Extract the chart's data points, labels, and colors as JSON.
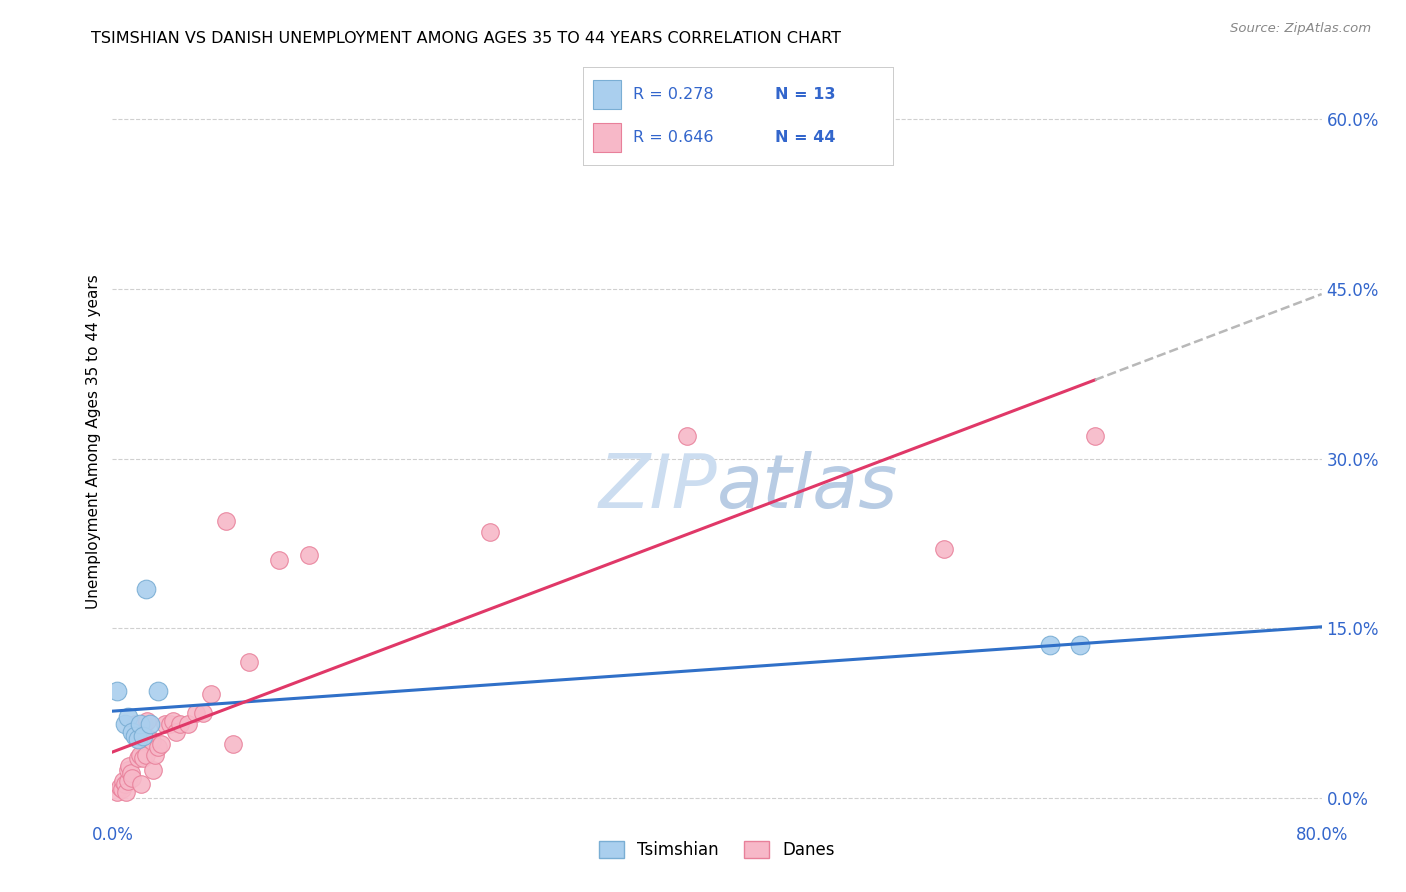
{
  "title": "TSIMSHIAN VS DANISH UNEMPLOYMENT AMONG AGES 35 TO 44 YEARS CORRELATION CHART",
  "source": "Source: ZipAtlas.com",
  "ylabel": "Unemployment Among Ages 35 to 44 years",
  "xlim": [
    0.0,
    0.8
  ],
  "ylim": [
    -0.02,
    0.65
  ],
  "xticks": [
    0.0,
    0.1,
    0.2,
    0.3,
    0.4,
    0.5,
    0.6,
    0.7,
    0.8
  ],
  "xticklabels": [
    "0.0%",
    "",
    "",
    "",
    "",
    "",
    "",
    "",
    "80.0%"
  ],
  "yticks_right": [
    0.0,
    0.15,
    0.3,
    0.45,
    0.6
  ],
  "yticklabels_right": [
    "0.0%",
    "15.0%",
    "30.0%",
    "45.0%",
    "60.0%"
  ],
  "tsimshian_color": "#aacfee",
  "tsimshian_edge": "#7aaed4",
  "danes_color": "#f7b8c8",
  "danes_edge": "#e8809a",
  "trend_tsimshian_color": "#3070c8",
  "trend_danes_color": "#e03868",
  "dashed_line_color": "#b8b8b8",
  "watermark_color": "#ccddf0",
  "legend_R1": "R = 0.278",
  "legend_N1": "N = 13",
  "legend_R2": "R = 0.646",
  "legend_N2": "N = 44",
  "legend_text_color": "#3366cc",
  "tsimshian_x": [
    0.003,
    0.008,
    0.01,
    0.013,
    0.015,
    0.017,
    0.018,
    0.02,
    0.022,
    0.025,
    0.03,
    0.62,
    0.64
  ],
  "tsimshian_y": [
    0.095,
    0.065,
    0.072,
    0.058,
    0.055,
    0.052,
    0.065,
    0.055,
    0.185,
    0.065,
    0.095,
    0.135,
    0.135
  ],
  "danes_x": [
    0.003,
    0.005,
    0.006,
    0.007,
    0.008,
    0.009,
    0.01,
    0.01,
    0.011,
    0.012,
    0.013,
    0.015,
    0.016,
    0.017,
    0.018,
    0.019,
    0.02,
    0.021,
    0.022,
    0.023,
    0.025,
    0.026,
    0.027,
    0.028,
    0.03,
    0.032,
    0.035,
    0.038,
    0.04,
    0.042,
    0.045,
    0.05,
    0.055,
    0.06,
    0.065,
    0.075,
    0.08,
    0.09,
    0.11,
    0.13,
    0.25,
    0.38,
    0.55,
    0.65
  ],
  "danes_y": [
    0.005,
    0.01,
    0.008,
    0.015,
    0.012,
    0.005,
    0.015,
    0.025,
    0.028,
    0.022,
    0.018,
    0.065,
    0.058,
    0.035,
    0.038,
    0.012,
    0.035,
    0.065,
    0.038,
    0.068,
    0.052,
    0.05,
    0.025,
    0.038,
    0.045,
    0.048,
    0.065,
    0.065,
    0.068,
    0.058,
    0.065,
    0.065,
    0.075,
    0.075,
    0.092,
    0.245,
    0.048,
    0.12,
    0.21,
    0.215,
    0.235,
    0.32,
    0.22,
    0.32
  ]
}
